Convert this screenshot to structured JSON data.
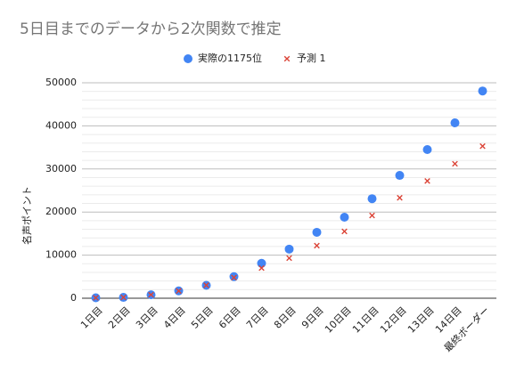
{
  "chart_data": {
    "type": "scatter",
    "title": "5日目までのデータから2次関数で推定",
    "y_label": "名声ポイント",
    "categories": [
      "1日目",
      "2日目",
      "3日目",
      "4日目",
      "5日目",
      "6日目",
      "7日目",
      "8日目",
      "9日目",
      "10日目",
      "11日目",
      "12日目",
      "13日目",
      "14日目",
      "最終ボーダー"
    ],
    "series": [
      {
        "name": "実際の1175位",
        "color": "#4285f4",
        "marker": "circle",
        "values": [
          100,
          200,
          800,
          1700,
          3000,
          5000,
          8100,
          11400,
          15300,
          18800,
          23100,
          28500,
          34500,
          40700,
          48100
        ]
      },
      {
        "name": "予測 1",
        "color": "#db4437",
        "marker": "x",
        "values": [
          100,
          200,
          800,
          1700,
          3000,
          4800,
          7000,
          9300,
          12200,
          15500,
          19200,
          23300,
          27200,
          31200,
          35300
        ]
      }
    ],
    "ylim": [
      0,
      50000
    ],
    "yticks": [
      0,
      10000,
      20000,
      30000,
      40000,
      50000
    ],
    "yminorticks": [
      2000,
      4000,
      6000,
      8000,
      12000,
      14000,
      16000,
      18000,
      22000,
      24000,
      26000,
      28000,
      32000,
      34000,
      36000,
      38000,
      42000,
      44000,
      46000,
      48000
    ],
    "grid": true,
    "legend": "top"
  }
}
